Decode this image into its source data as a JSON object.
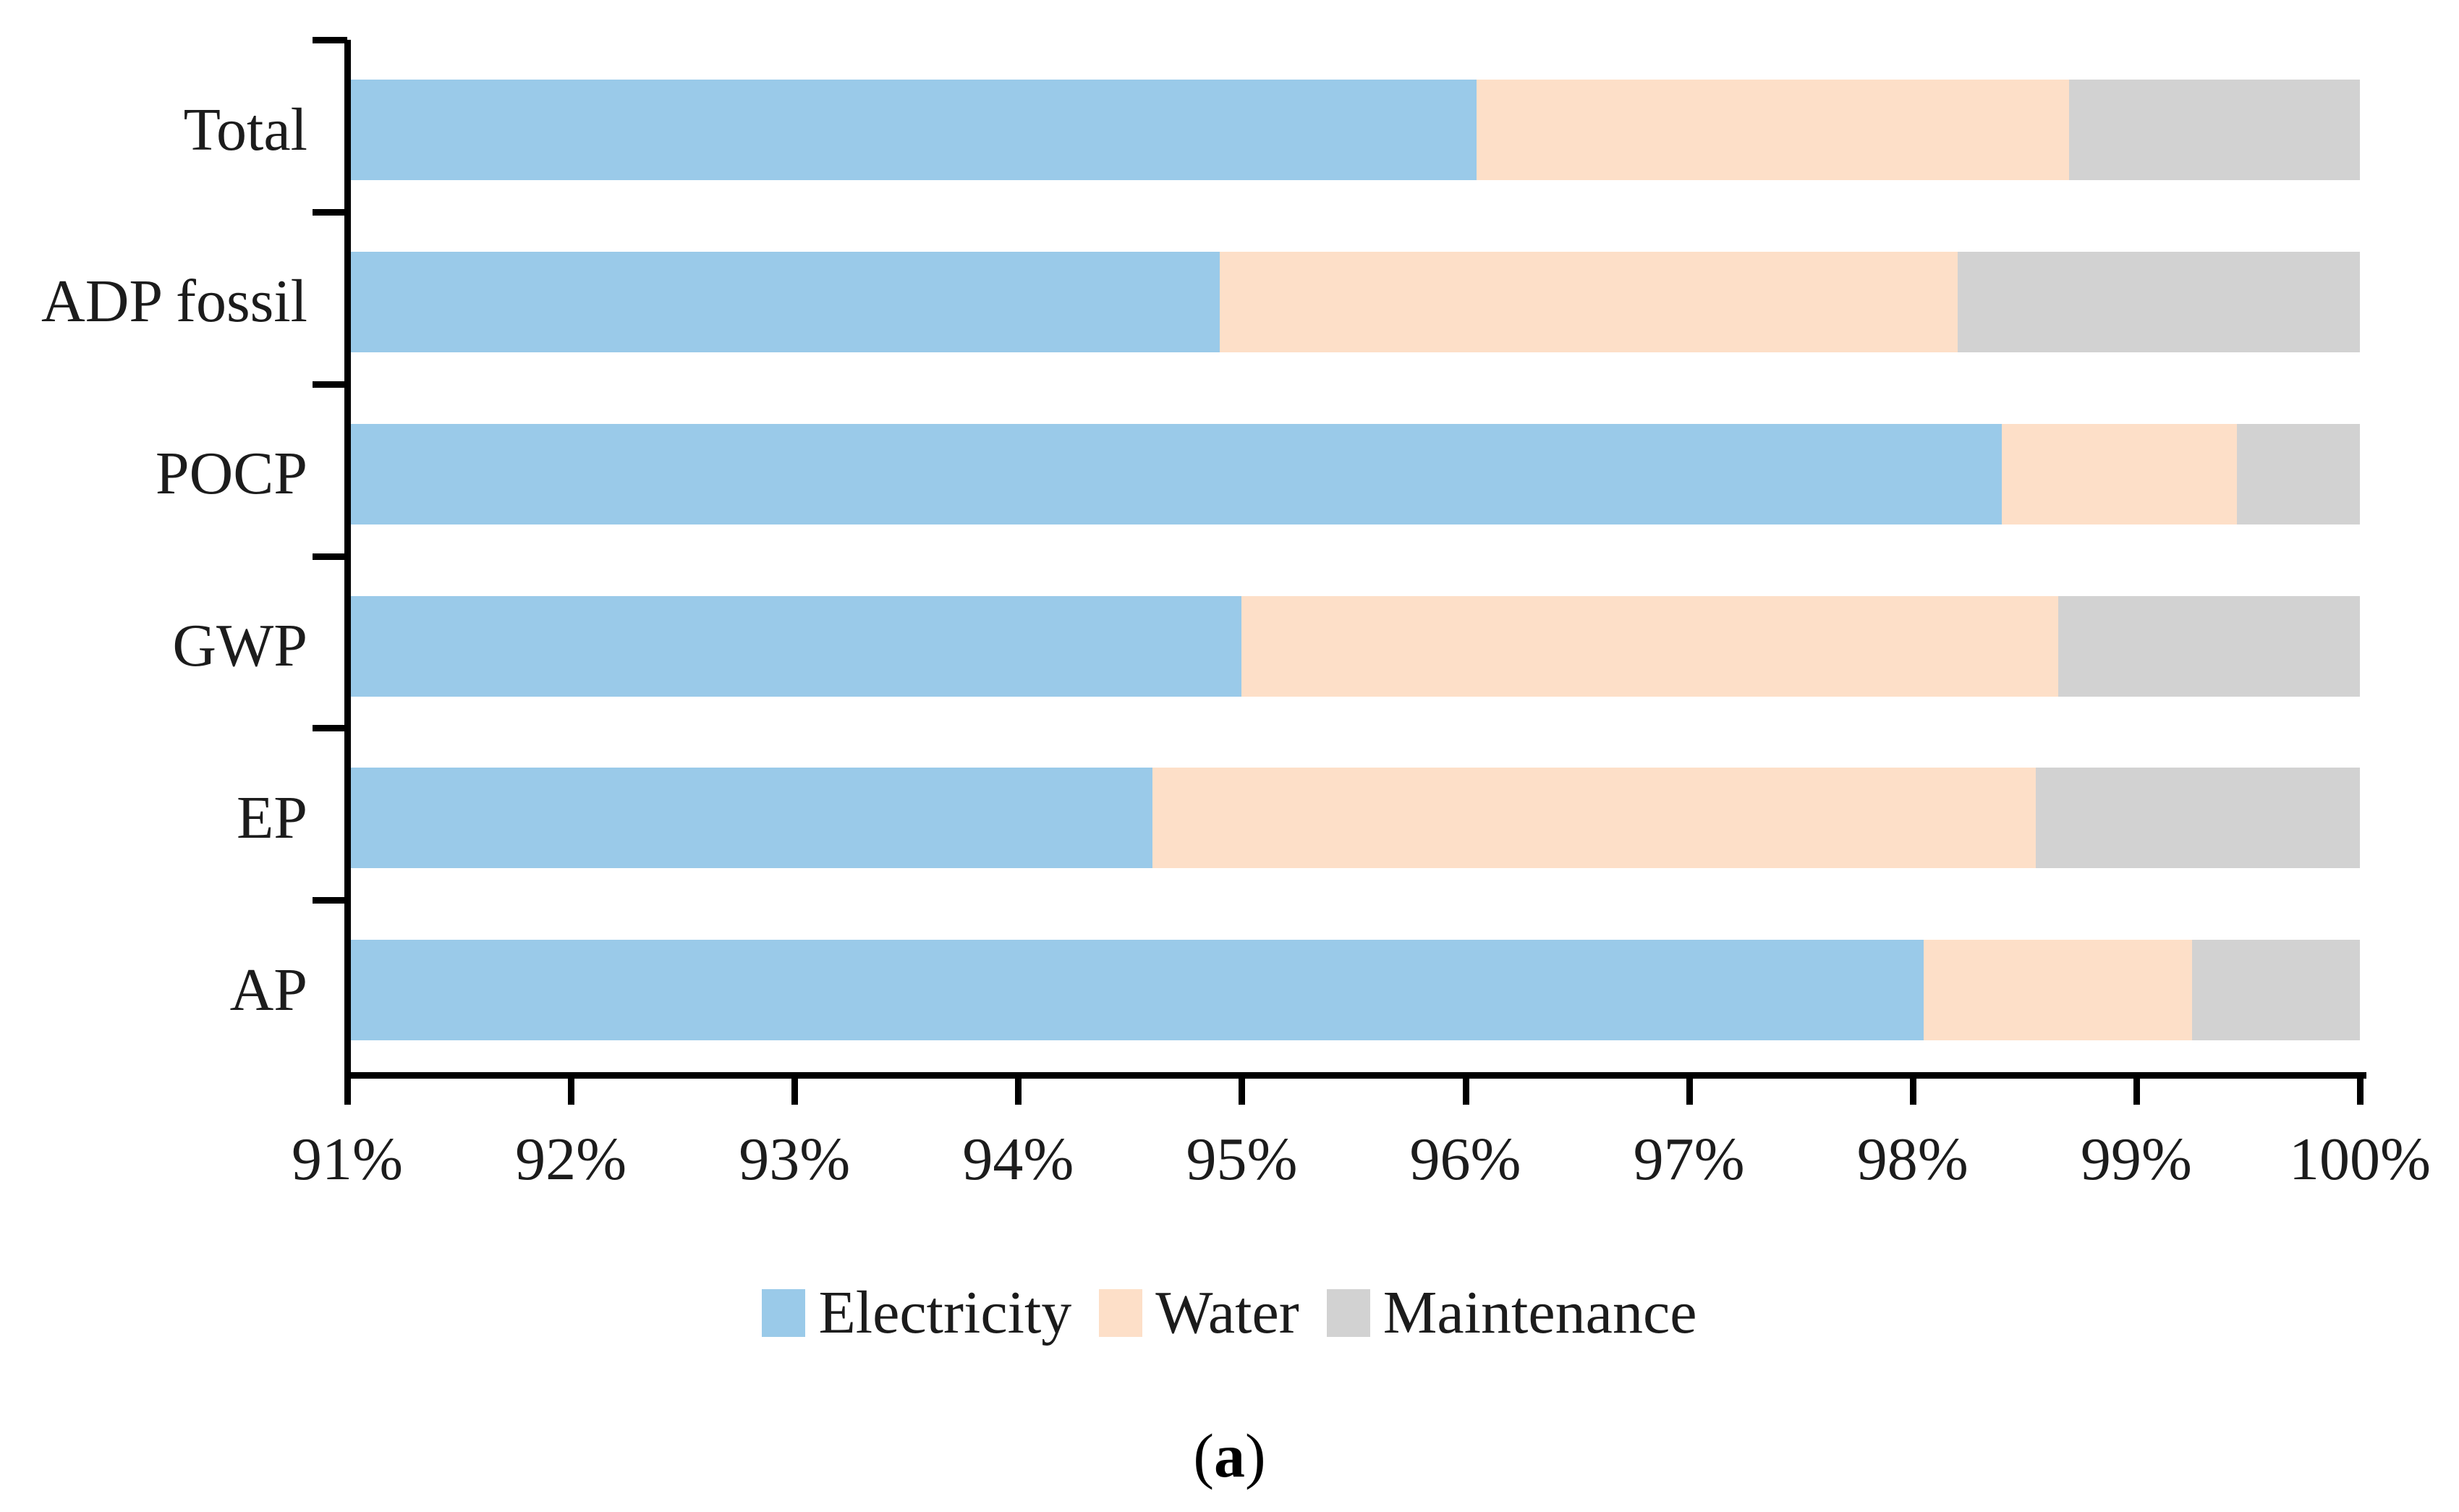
{
  "figure": {
    "caption": {
      "open": "(",
      "letter": "a",
      "close": ")"
    }
  },
  "legend": [
    {
      "label": "Electricity",
      "color": "#9ACAE9"
    },
    {
      "label": "Water",
      "color": "#FDDFC8"
    },
    {
      "label": "Maintenance",
      "color": "#D2D2D2"
    }
  ],
  "chart_data": {
    "type": "bar",
    "orientation": "horizontal",
    "stacked": true,
    "title": "",
    "xlabel": "",
    "ylabel": "",
    "grid": false,
    "legend_position": "bottom",
    "categories": [
      "Total",
      "ADP fossil",
      "POCP",
      "GWP",
      "EP",
      "AP"
    ],
    "series": [
      {
        "name": "Electricity",
        "color": "#9ACAE9",
        "values": [
          96.05,
          94.9,
          98.4,
          95.0,
          94.6,
          98.05
        ]
      },
      {
        "name": "Water",
        "color": "#FDDFC8",
        "values": [
          2.65,
          3.3,
          1.05,
          3.65,
          3.95,
          1.2
        ]
      },
      {
        "name": "Maintenance",
        "color": "#D2D2D2",
        "values": [
          1.3,
          1.8,
          0.55,
          1.35,
          1.45,
          0.75
        ]
      }
    ],
    "x_axis": {
      "min": 91,
      "max": 100,
      "tick_step": 1,
      "tick_labels": [
        "91%",
        "92%",
        "93%",
        "94%",
        "95%",
        "96%",
        "97%",
        "98%",
        "99%",
        "100%"
      ]
    }
  }
}
